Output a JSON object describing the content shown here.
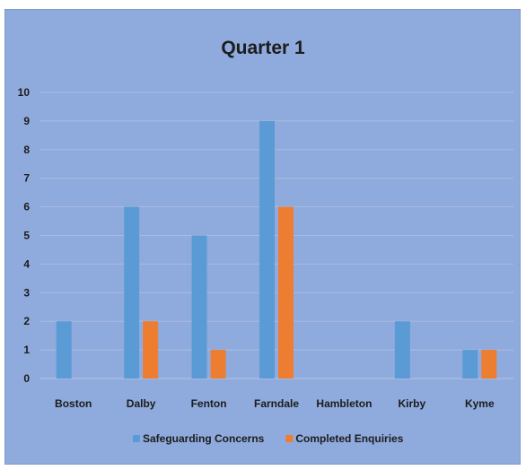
{
  "chart_data": {
    "type": "bar",
    "title": "Quarter 1",
    "categories": [
      "Boston",
      "Dalby",
      "Fenton",
      "Farndale",
      "Hambleton",
      "Kirby",
      "Kyme"
    ],
    "series": [
      {
        "name": "Safeguarding Concerns",
        "color": "#5b9bd5",
        "values": [
          2,
          6,
          5,
          9,
          0,
          2,
          1
        ]
      },
      {
        "name": "Completed Enquiries",
        "color": "#ed7d31",
        "values": [
          0,
          2,
          1,
          6,
          0,
          0,
          1
        ]
      }
    ],
    "ylim": [
      0,
      10
    ],
    "yticks": [
      "0",
      "1",
      "2",
      "3",
      "4",
      "5",
      "6",
      "7",
      "8",
      "9",
      "10"
    ],
    "grid": true,
    "legend_position": "bottom",
    "background_color": "#8faadc"
  }
}
